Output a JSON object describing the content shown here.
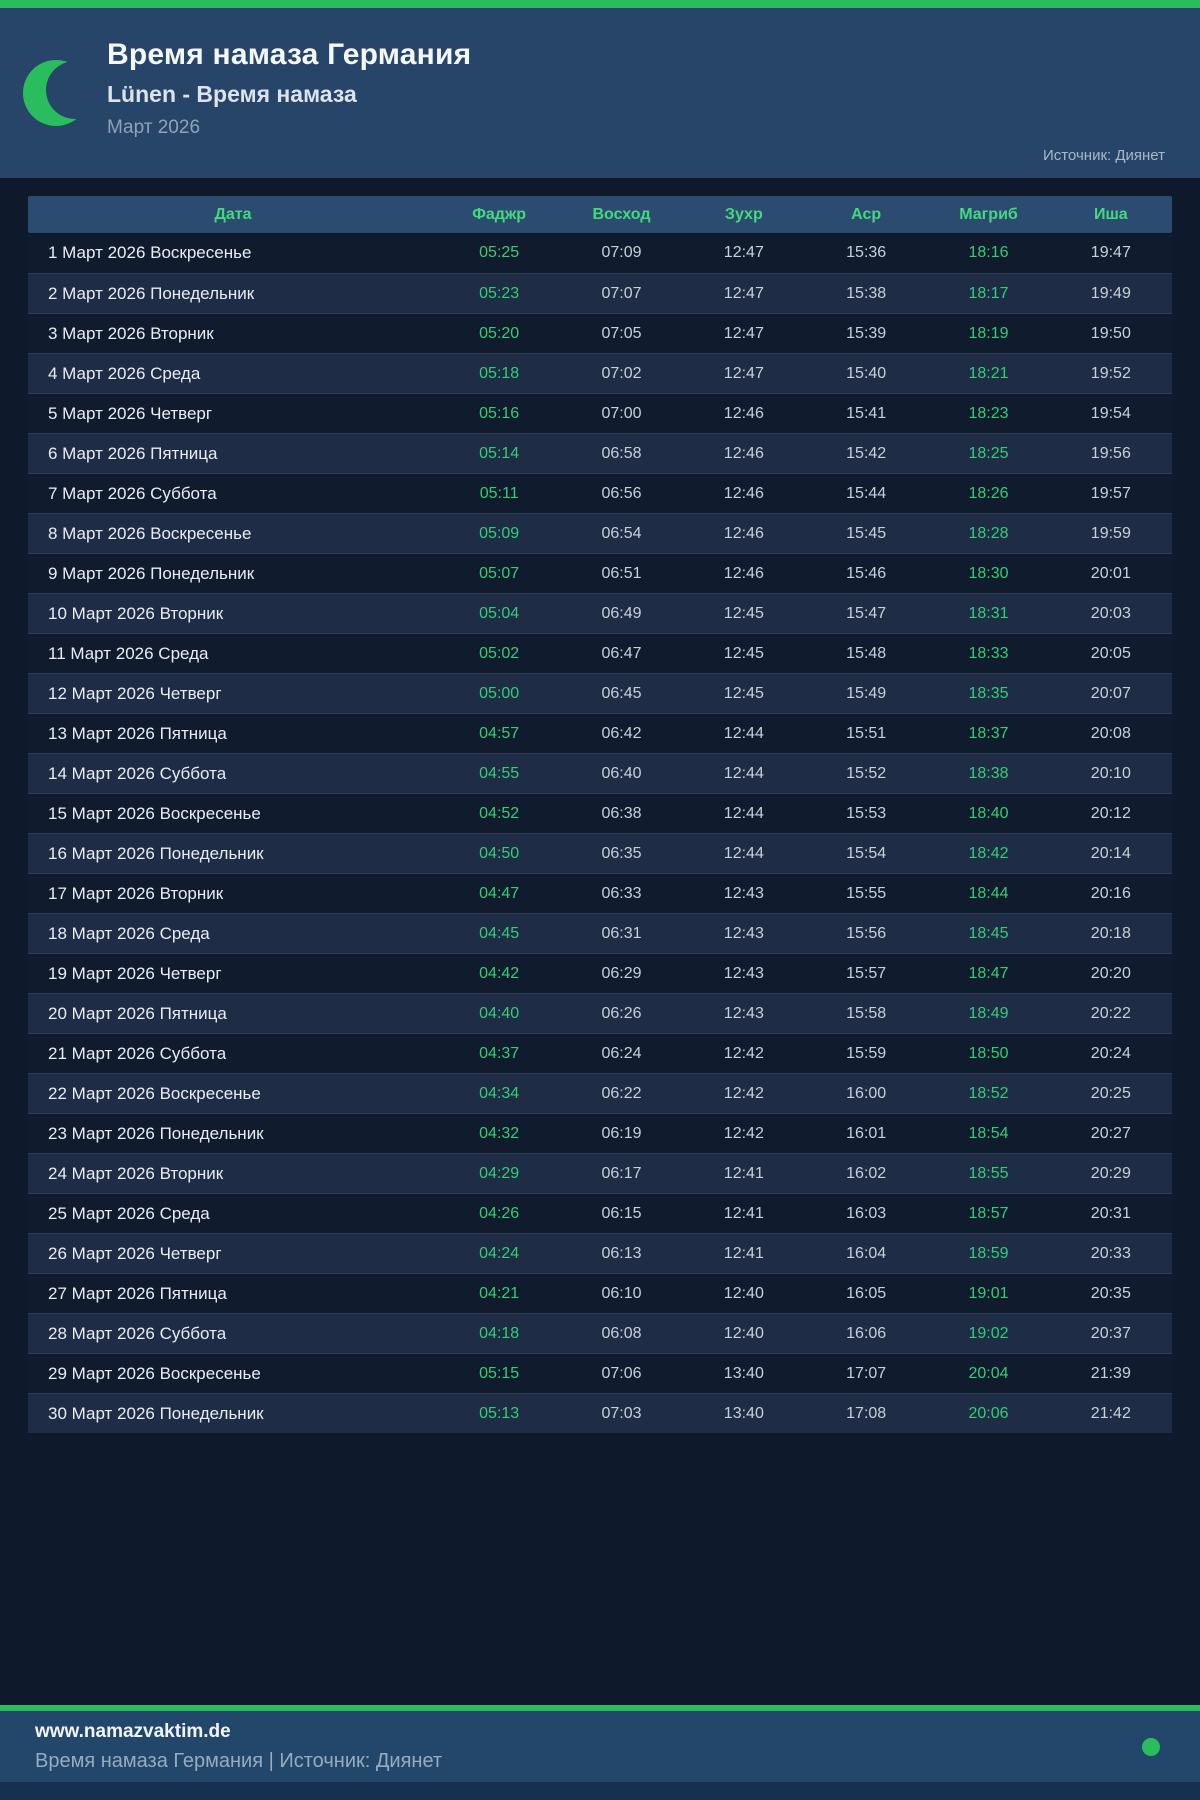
{
  "header": {
    "title": "Время намаза Германия",
    "subtitle": "Lünen - Время намаза",
    "month": "Март 2026",
    "source": "Источник: Диянет"
  },
  "table": {
    "columns": [
      "Дата",
      "Фаджр",
      "Восход",
      "Зухр",
      "Аср",
      "Магриб",
      "Иша"
    ],
    "highlighted_columns": [
      "Фаджр",
      "Магриб"
    ],
    "rows": [
      {
        "date": "1 Март 2026 Воскресенье",
        "times": [
          "05:25",
          "07:09",
          "12:47",
          "15:36",
          "18:16",
          "19:47"
        ]
      },
      {
        "date": "2 Март 2026 Понедельник",
        "times": [
          "05:23",
          "07:07",
          "12:47",
          "15:38",
          "18:17",
          "19:49"
        ]
      },
      {
        "date": "3 Март 2026 Вторник",
        "times": [
          "05:20",
          "07:05",
          "12:47",
          "15:39",
          "18:19",
          "19:50"
        ]
      },
      {
        "date": "4 Март 2026 Среда",
        "times": [
          "05:18",
          "07:02",
          "12:47",
          "15:40",
          "18:21",
          "19:52"
        ]
      },
      {
        "date": "5 Март 2026 Четверг",
        "times": [
          "05:16",
          "07:00",
          "12:46",
          "15:41",
          "18:23",
          "19:54"
        ]
      },
      {
        "date": "6 Март 2026 Пятница",
        "times": [
          "05:14",
          "06:58",
          "12:46",
          "15:42",
          "18:25",
          "19:56"
        ]
      },
      {
        "date": "7 Март 2026 Суббота",
        "times": [
          "05:11",
          "06:56",
          "12:46",
          "15:44",
          "18:26",
          "19:57"
        ]
      },
      {
        "date": "8 Март 2026 Воскресенье",
        "times": [
          "05:09",
          "06:54",
          "12:46",
          "15:45",
          "18:28",
          "19:59"
        ]
      },
      {
        "date": "9 Март 2026 Понедельник",
        "times": [
          "05:07",
          "06:51",
          "12:46",
          "15:46",
          "18:30",
          "20:01"
        ]
      },
      {
        "date": "10 Март 2026 Вторник",
        "times": [
          "05:04",
          "06:49",
          "12:45",
          "15:47",
          "18:31",
          "20:03"
        ]
      },
      {
        "date": "11 Март 2026 Среда",
        "times": [
          "05:02",
          "06:47",
          "12:45",
          "15:48",
          "18:33",
          "20:05"
        ]
      },
      {
        "date": "12 Март 2026 Четверг",
        "times": [
          "05:00",
          "06:45",
          "12:45",
          "15:49",
          "18:35",
          "20:07"
        ]
      },
      {
        "date": "13 Март 2026 Пятница",
        "times": [
          "04:57",
          "06:42",
          "12:44",
          "15:51",
          "18:37",
          "20:08"
        ]
      },
      {
        "date": "14 Март 2026 Суббота",
        "times": [
          "04:55",
          "06:40",
          "12:44",
          "15:52",
          "18:38",
          "20:10"
        ]
      },
      {
        "date": "15 Март 2026 Воскресенье",
        "times": [
          "04:52",
          "06:38",
          "12:44",
          "15:53",
          "18:40",
          "20:12"
        ]
      },
      {
        "date": "16 Март 2026 Понедельник",
        "times": [
          "04:50",
          "06:35",
          "12:44",
          "15:54",
          "18:42",
          "20:14"
        ]
      },
      {
        "date": "17 Март 2026 Вторник",
        "times": [
          "04:47",
          "06:33",
          "12:43",
          "15:55",
          "18:44",
          "20:16"
        ]
      },
      {
        "date": "18 Март 2026 Среда",
        "times": [
          "04:45",
          "06:31",
          "12:43",
          "15:56",
          "18:45",
          "20:18"
        ]
      },
      {
        "date": "19 Март 2026 Четверг",
        "times": [
          "04:42",
          "06:29",
          "12:43",
          "15:57",
          "18:47",
          "20:20"
        ]
      },
      {
        "date": "20 Март 2026 Пятница",
        "times": [
          "04:40",
          "06:26",
          "12:43",
          "15:58",
          "18:49",
          "20:22"
        ]
      },
      {
        "date": "21 Март 2026 Суббота",
        "times": [
          "04:37",
          "06:24",
          "12:42",
          "15:59",
          "18:50",
          "20:24"
        ]
      },
      {
        "date": "22 Март 2026 Воскресенье",
        "times": [
          "04:34",
          "06:22",
          "12:42",
          "16:00",
          "18:52",
          "20:25"
        ]
      },
      {
        "date": "23 Март 2026 Понедельник",
        "times": [
          "04:32",
          "06:19",
          "12:42",
          "16:01",
          "18:54",
          "20:27"
        ]
      },
      {
        "date": "24 Март 2026 Вторник",
        "times": [
          "04:29",
          "06:17",
          "12:41",
          "16:02",
          "18:55",
          "20:29"
        ]
      },
      {
        "date": "25 Март 2026 Среда",
        "times": [
          "04:26",
          "06:15",
          "12:41",
          "16:03",
          "18:57",
          "20:31"
        ]
      },
      {
        "date": "26 Март 2026 Четверг",
        "times": [
          "04:24",
          "06:13",
          "12:41",
          "16:04",
          "18:59",
          "20:33"
        ]
      },
      {
        "date": "27 Март 2026 Пятница",
        "times": [
          "04:21",
          "06:10",
          "12:40",
          "16:05",
          "19:01",
          "20:35"
        ]
      },
      {
        "date": "28 Март 2026 Суббота",
        "times": [
          "04:18",
          "06:08",
          "12:40",
          "16:06",
          "19:02",
          "20:37"
        ]
      },
      {
        "date": "29 Март 2026 Воскресенье",
        "times": [
          "05:15",
          "07:06",
          "13:40",
          "17:07",
          "20:04",
          "21:39"
        ]
      },
      {
        "date": "30 Март 2026 Понедельник",
        "times": [
          "05:13",
          "07:03",
          "13:40",
          "17:08",
          "20:06",
          "21:42"
        ]
      }
    ]
  },
  "footer": {
    "website": "www.namazvaktim.de",
    "tagline": "Время намаза Германия | Источник: Диянет"
  },
  "colors": {
    "accent_green": "#2abd5e",
    "header_label_green": "#45d97d",
    "time_highlight_green": "#36cd72",
    "header_background": "#274568",
    "page_background": "#0e1a2b",
    "row_dark": "#101c2e",
    "row_light": "#1e2d45",
    "footer_background": "#23476b"
  }
}
